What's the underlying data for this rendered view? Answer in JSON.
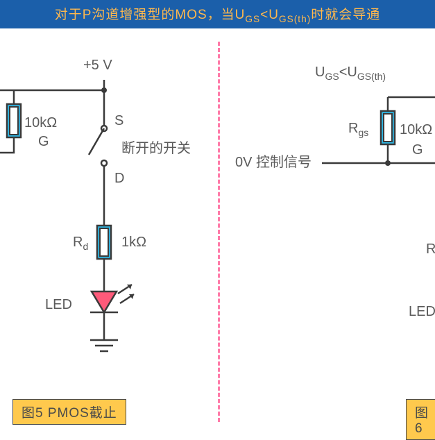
{
  "header": {
    "html": "对于P沟道增强型的MOS，当U<sub>GS</sub>&lt;U<sub>GS(th)</sub>时就会导通",
    "bg": "#1b5faa",
    "fg": "#ffb84d"
  },
  "divider": {
    "color": "#ff7aa8"
  },
  "left": {
    "vplus": "+5 V",
    "r_gs": {
      "label": "",
      "value": "10kΩ"
    },
    "gate_label": "G",
    "s_label": "S",
    "d_label": "D",
    "switch_text": "断开的开关",
    "r_d": {
      "label": "R",
      "sub": "d",
      "value": "1kΩ"
    },
    "led_label": "LED",
    "caption": "图5 PMOS截止"
  },
  "right": {
    "condition_html": "U<tspan class='sub' dy='5'>GS</tspan><tspan dy='-5'>&lt;U</tspan><tspan class='sub' dy='5'>GS(th)</tspan>",
    "ctrl": "0V 控制信号",
    "r_gs": {
      "label": "R",
      "sub": "gs",
      "value": "10kΩ"
    },
    "gate_label": "G",
    "r_d_label_partial": "R",
    "led_label": "LED",
    "caption": "图6"
  },
  "colors": {
    "wire": "#3a3a3a",
    "resistor": "#2fb8e6",
    "led": "#ff5a7a",
    "caption_bg": "#ffc94d"
  }
}
